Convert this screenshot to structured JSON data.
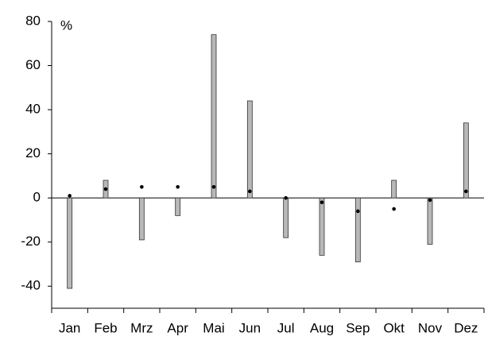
{
  "chart_data": {
    "type": "bar",
    "y_label": "%",
    "categories": [
      "Jan",
      "Feb",
      "Mrz",
      "Apr",
      "Mai",
      "Jun",
      "Jul",
      "Aug",
      "Sep",
      "Okt",
      "Nov",
      "Dez"
    ],
    "series": [
      {
        "style": "bar",
        "color": "#b8b8b8",
        "values": [
          -41,
          8,
          -19,
          -8,
          74,
          44,
          -18,
          -26,
          -29,
          8,
          -21,
          34
        ]
      },
      {
        "style": "marker",
        "color": "#000000",
        "values": [
          1,
          4,
          5,
          5,
          5,
          3,
          0,
          -2,
          -6,
          -5,
          -1,
          3
        ]
      }
    ],
    "ylim": [
      -50,
      80
    ],
    "yticks": [
      -40,
      -20,
      0,
      20,
      40,
      60,
      80
    ]
  }
}
